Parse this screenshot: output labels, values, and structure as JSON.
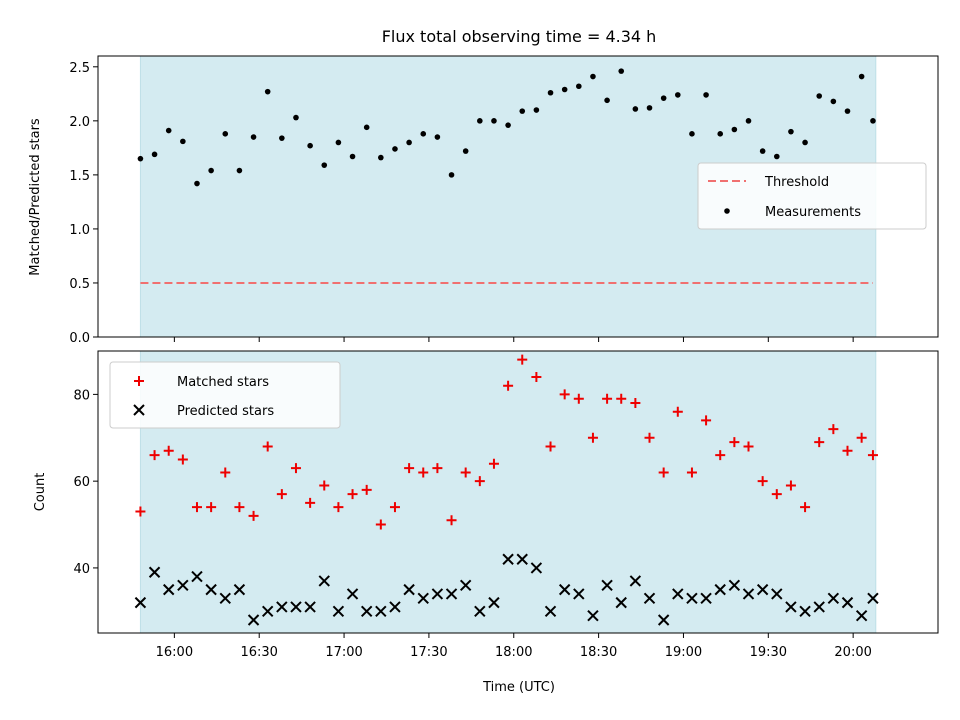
{
  "colors": {
    "shade": "#d4ebf1",
    "threshold": "#f07070",
    "matched": "#ee0000",
    "predicted": "#000000",
    "measurements": "#000000"
  },
  "chart_data": [
    {
      "type": "scatter",
      "title": "Flux total observing time = 4.34 h",
      "xlabel": "",
      "ylabel": "Matched/Predicted stars",
      "ylim": [
        0,
        2.6
      ],
      "yticks": [
        0.0,
        0.5,
        1.0,
        1.5,
        2.0,
        2.5
      ],
      "ytick_labels": [
        "0.0",
        "0.5",
        "1.0",
        "1.5",
        "2.0",
        "2.5"
      ],
      "xlim": [
        "15:33",
        "20:30"
      ],
      "shaded_interval": [
        "15:48",
        "20:08"
      ],
      "legend": {
        "placement": "center-right",
        "entries": [
          "Threshold",
          "Measurements"
        ]
      },
      "threshold": {
        "name": "Threshold",
        "style": "dashed",
        "value": 0.5,
        "x_range": [
          "15:48",
          "20:07"
        ]
      },
      "series": [
        {
          "name": "Measurements",
          "marker": "dot",
          "x": [
            "15:48",
            "15:53",
            "15:58",
            "16:03",
            "16:08",
            "16:13",
            "16:18",
            "16:23",
            "16:28",
            "16:33",
            "16:38",
            "16:43",
            "16:48",
            "16:53",
            "16:58",
            "17:03",
            "17:08",
            "17:13",
            "17:18",
            "17:23",
            "17:28",
            "17:33",
            "17:38",
            "17:43",
            "17:48",
            "17:53",
            "17:58",
            "18:03",
            "18:08",
            "18:13",
            "18:18",
            "18:23",
            "18:28",
            "18:33",
            "18:38",
            "18:43",
            "18:48",
            "18:53",
            "18:58",
            "19:03",
            "19:08",
            "19:13",
            "19:18",
            "19:23",
            "19:28",
            "19:33",
            "19:38",
            "19:43",
            "19:48",
            "19:53",
            "19:58",
            "20:03",
            "20:07"
          ],
          "y": [
            1.65,
            1.69,
            1.91,
            1.81,
            1.42,
            1.54,
            1.88,
            1.54,
            1.85,
            2.27,
            1.84,
            2.03,
            1.77,
            1.59,
            1.8,
            1.67,
            1.94,
            1.66,
            1.74,
            1.8,
            1.88,
            1.85,
            1.5,
            1.72,
            2.0,
            2.0,
            1.96,
            2.09,
            2.1,
            2.26,
            2.29,
            2.32,
            2.41,
            2.19,
            2.46,
            2.11,
            2.12,
            2.21,
            2.24,
            1.88,
            2.24,
            1.88,
            1.92,
            2.0,
            1.72,
            1.67,
            1.9,
            1.8,
            2.23,
            2.18,
            2.09,
            2.41,
            2.0
          ]
        }
      ]
    },
    {
      "type": "scatter",
      "title": "",
      "xlabel": "Time (UTC)",
      "ylabel": "Count",
      "ylim": [
        25,
        90
      ],
      "yticks": [
        40,
        60,
        80
      ],
      "ytick_labels": [
        "40",
        "60",
        "80"
      ],
      "xlim": [
        "15:33",
        "20:30"
      ],
      "xticks": [
        "16:00",
        "16:30",
        "17:00",
        "17:30",
        "18:00",
        "18:30",
        "19:00",
        "19:30",
        "20:00"
      ],
      "xtick_labels": [
        "16:00",
        "16:30",
        "17:00",
        "17:30",
        "18:00",
        "18:30",
        "19:00",
        "19:30",
        "20:00"
      ],
      "shaded_interval": [
        "15:48",
        "20:08"
      ],
      "legend": {
        "placement": "top-left",
        "entries": [
          "Matched stars",
          "Predicted stars"
        ]
      },
      "series": [
        {
          "name": "Matched stars",
          "marker": "plus",
          "x": [
            "15:48",
            "15:53",
            "15:58",
            "16:03",
            "16:08",
            "16:13",
            "16:18",
            "16:23",
            "16:28",
            "16:33",
            "16:38",
            "16:43",
            "16:48",
            "16:53",
            "16:58",
            "17:03",
            "17:08",
            "17:13",
            "17:18",
            "17:23",
            "17:28",
            "17:33",
            "17:38",
            "17:43",
            "17:48",
            "17:53",
            "17:58",
            "18:03",
            "18:08",
            "18:13",
            "18:18",
            "18:23",
            "18:28",
            "18:33",
            "18:38",
            "18:43",
            "18:48",
            "18:53",
            "18:58",
            "19:03",
            "19:08",
            "19:13",
            "19:18",
            "19:23",
            "19:28",
            "19:33",
            "19:38",
            "19:43",
            "19:48",
            "19:53",
            "19:58",
            "20:03",
            "20:07"
          ],
          "y": [
            53,
            66,
            67,
            65,
            54,
            54,
            62,
            54,
            52,
            68,
            57,
            63,
            55,
            59,
            54,
            57,
            58,
            50,
            54,
            63,
            62,
            63,
            51,
            62,
            60,
            64,
            82,
            88,
            84,
            68,
            80,
            79,
            70,
            79,
            79,
            78,
            70,
            62,
            76,
            62,
            74,
            66,
            69,
            68,
            60,
            57,
            59,
            54,
            69,
            72,
            67,
            70,
            66
          ]
        },
        {
          "name": "Predicted stars",
          "marker": "x",
          "x": [
            "15:48",
            "15:53",
            "15:58",
            "16:03",
            "16:08",
            "16:13",
            "16:18",
            "16:23",
            "16:28",
            "16:33",
            "16:38",
            "16:43",
            "16:48",
            "16:53",
            "16:58",
            "17:03",
            "17:08",
            "17:13",
            "17:18",
            "17:23",
            "17:28",
            "17:33",
            "17:38",
            "17:43",
            "17:48",
            "17:53",
            "17:58",
            "18:03",
            "18:08",
            "18:13",
            "18:18",
            "18:23",
            "18:28",
            "18:33",
            "18:38",
            "18:43",
            "18:48",
            "18:53",
            "18:58",
            "19:03",
            "19:08",
            "19:13",
            "19:18",
            "19:23",
            "19:28",
            "19:33",
            "19:38",
            "19:43",
            "19:48",
            "19:53",
            "19:58",
            "20:03",
            "20:07"
          ],
          "y": [
            32,
            39,
            35,
            36,
            38,
            35,
            33,
            35,
            28,
            30,
            31,
            31,
            31,
            37,
            30,
            34,
            30,
            30,
            31,
            35,
            33,
            34,
            34,
            36,
            30,
            32,
            42,
            42,
            40,
            30,
            35,
            34,
            29,
            36,
            32,
            37,
            33,
            28,
            34,
            33,
            33,
            35,
            36,
            34,
            35,
            34,
            31,
            30,
            31,
            33,
            32,
            29,
            33
          ]
        }
      ]
    }
  ]
}
